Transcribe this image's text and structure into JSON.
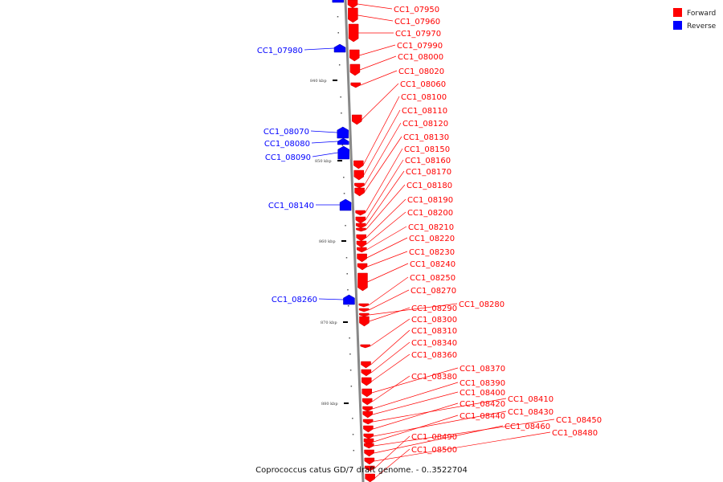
{
  "caption": "Coprococcus catus GD/7 draft genome. - 0..3522704",
  "legend": [
    {
      "label": "Forward",
      "color": "#ff0000"
    },
    {
      "label": "Reverse",
      "color": "#0000ff"
    }
  ],
  "tick_labels": [
    "840 kbp",
    "850 kbp",
    "860 kbp",
    "870 kbp",
    "880 kbp"
  ],
  "reverse_genes": [
    "CC1_07980",
    "CC1_08070",
    "CC1_08080",
    "CC1_08090",
    "CC1_08140",
    "CC1_08260"
  ],
  "forward_genes": [
    "CC1_07950",
    "CC1_07960",
    "CC1_07970",
    "CC1_07990",
    "CC1_08000",
    "CC1_08020",
    "CC1_08060",
    "CC1_08100",
    "CC1_08110",
    "CC1_08120",
    "CC1_08130",
    "CC1_08150",
    "CC1_08160",
    "CC1_08170",
    "CC1_08180",
    "CC1_08190",
    "CC1_08200",
    "CC1_08210",
    "CC1_08220",
    "CC1_08230",
    "CC1_08240",
    "CC1_08250",
    "CC1_08270",
    "CC1_08280",
    "CC1_08290",
    "CC1_08300",
    "CC1_08310",
    "CC1_08340",
    "CC1_08360",
    "CC1_08370",
    "CC1_08380",
    "CC1_08390",
    "CC1_08400",
    "CC1_08410",
    "CC1_08420",
    "CC1_08430",
    "CC1_08440",
    "CC1_08450",
    "CC1_08460",
    "CC1_08480",
    "CC1_08490",
    "CC1_08500"
  ],
  "colors": {
    "forward": "#ff0000",
    "reverse": "#0000ff",
    "backbone": "#888888"
  }
}
